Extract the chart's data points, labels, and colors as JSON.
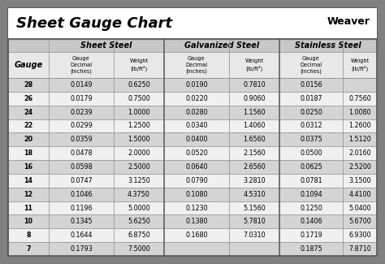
{
  "title": "Sheet Gauge Chart",
  "bg_outer": "#808080",
  "bg_white": "#ffffff",
  "title_area_bg": "#ffffff",
  "header1_bg": "#c8c8c8",
  "header2_bg": "#e8e8e8",
  "row_odd_bg": "#d4d4d4",
  "row_even_bg": "#f0f0f0",
  "gauges": [
    28,
    26,
    24,
    22,
    20,
    18,
    16,
    14,
    12,
    11,
    10,
    8,
    7
  ],
  "sheet_steel_decimal": [
    "0.0149",
    "0.0179",
    "0.0239",
    "0.0299",
    "0.0359",
    "0.0478",
    "0.0598",
    "0.0747",
    "0.1046",
    "0.1196",
    "0.1345",
    "0.1644",
    "0.1793"
  ],
  "sheet_steel_weight": [
    "0.6250",
    "0.7500",
    "1.0000",
    "1.2500",
    "1.5000",
    "2.0000",
    "2.5000",
    "3.1250",
    "4.3750",
    "5.0000",
    "5.6250",
    "6.8750",
    "7.5000"
  ],
  "galv_decimal": [
    "0.0190",
    "0.0220",
    "0.0280",
    "0.0340",
    "0.0400",
    "0.0520",
    "0.0640",
    "0.0790",
    "0.1080",
    "0.1230",
    "0.1380",
    "0.1680",
    ""
  ],
  "galv_weight": [
    "0.7810",
    "0.9060",
    "1.1560",
    "1.4060",
    "1.6560",
    "2.1560",
    "2.6560",
    "3.2810",
    "4.5310",
    "5.1560",
    "5.7810",
    "7.0310",
    ""
  ],
  "ss_decimal": [
    "0.0156",
    "0.0187",
    "0.0250",
    "0.0312",
    "0.0375",
    "0.0500",
    "0.0625",
    "0.0781",
    "0.1094",
    "0.1250",
    "0.1406",
    "0.1719",
    "0.1875"
  ],
  "ss_weight": [
    "",
    "0.7560",
    "1.0080",
    "1.2600",
    "1.5120",
    "2.0160",
    "2.5200",
    "3.1500",
    "4.4100",
    "5.0400",
    "5.6700",
    "6.9300",
    "7.8710"
  ],
  "figw": 4.74,
  "figh": 3.25,
  "dpi": 100
}
